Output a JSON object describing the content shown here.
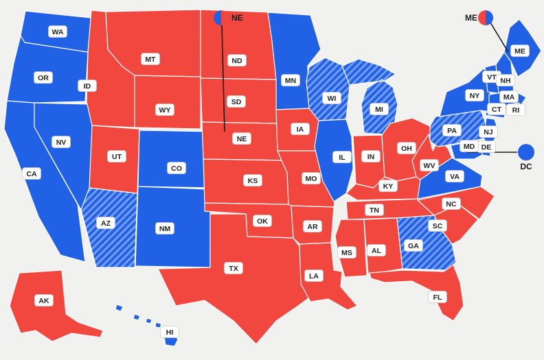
{
  "page": {
    "background": "#f1f1ef"
  },
  "colors": {
    "dem": "#2061e5",
    "rep": "#f2473f",
    "hatch_stripe": "rgba(255,255,255,0.38)",
    "state_border": "#ffffff",
    "label_bg": "#ffffff",
    "label_border": "#c9c9c9",
    "label_text": "#222222",
    "callout_line": "#1a1a1a",
    "callout_text": "#1a1a1a"
  },
  "states": [
    {
      "abbr": "WA",
      "party": "dem",
      "hatched": false
    },
    {
      "abbr": "OR",
      "party": "dem",
      "hatched": false
    },
    {
      "abbr": "CA",
      "party": "dem",
      "hatched": false
    },
    {
      "abbr": "NV",
      "party": "dem",
      "hatched": false
    },
    {
      "abbr": "ID",
      "party": "rep",
      "hatched": false
    },
    {
      "abbr": "MT",
      "party": "rep",
      "hatched": false
    },
    {
      "abbr": "WY",
      "party": "rep",
      "hatched": false
    },
    {
      "abbr": "UT",
      "party": "rep",
      "hatched": false
    },
    {
      "abbr": "CO",
      "party": "dem",
      "hatched": false
    },
    {
      "abbr": "AZ",
      "party": "dem",
      "hatched": true
    },
    {
      "abbr": "NM",
      "party": "dem",
      "hatched": false
    },
    {
      "abbr": "ND",
      "party": "rep",
      "hatched": false
    },
    {
      "abbr": "SD",
      "party": "rep",
      "hatched": false
    },
    {
      "abbr": "NE",
      "party": "rep",
      "hatched": false
    },
    {
      "abbr": "KS",
      "party": "rep",
      "hatched": false
    },
    {
      "abbr": "OK",
      "party": "rep",
      "hatched": false
    },
    {
      "abbr": "TX",
      "party": "rep",
      "hatched": false
    },
    {
      "abbr": "MN",
      "party": "dem",
      "hatched": false
    },
    {
      "abbr": "IA",
      "party": "rep",
      "hatched": false
    },
    {
      "abbr": "MO",
      "party": "rep",
      "hatched": false
    },
    {
      "abbr": "AR",
      "party": "rep",
      "hatched": false
    },
    {
      "abbr": "LA",
      "party": "rep",
      "hatched": false
    },
    {
      "abbr": "WI",
      "party": "dem",
      "hatched": true
    },
    {
      "abbr": "IL",
      "party": "dem",
      "hatched": false
    },
    {
      "abbr": "MI",
      "party": "dem",
      "hatched": true
    },
    {
      "abbr": "IN",
      "party": "rep",
      "hatched": false
    },
    {
      "abbr": "OH",
      "party": "rep",
      "hatched": false
    },
    {
      "abbr": "KY",
      "party": "rep",
      "hatched": false
    },
    {
      "abbr": "TN",
      "party": "rep",
      "hatched": false
    },
    {
      "abbr": "MS",
      "party": "rep",
      "hatched": false
    },
    {
      "abbr": "AL",
      "party": "rep",
      "hatched": false
    },
    {
      "abbr": "GA",
      "party": "dem",
      "hatched": true
    },
    {
      "abbr": "FL",
      "party": "rep",
      "hatched": false
    },
    {
      "abbr": "SC",
      "party": "rep",
      "hatched": false
    },
    {
      "abbr": "NC",
      "party": "rep",
      "hatched": false
    },
    {
      "abbr": "VA",
      "party": "dem",
      "hatched": false
    },
    {
      "abbr": "WV",
      "party": "rep",
      "hatched": false
    },
    {
      "abbr": "PA",
      "party": "dem",
      "hatched": true
    },
    {
      "abbr": "NY",
      "party": "dem",
      "hatched": false
    },
    {
      "abbr": "VT",
      "party": "dem",
      "hatched": false
    },
    {
      "abbr": "NH",
      "party": "dem",
      "hatched": false
    },
    {
      "abbr": "ME",
      "party": "dem",
      "hatched": false
    },
    {
      "abbr": "MA",
      "party": "dem",
      "hatched": false
    },
    {
      "abbr": "CT",
      "party": "dem",
      "hatched": false
    },
    {
      "abbr": "RI",
      "party": "dem",
      "hatched": false
    },
    {
      "abbr": "NJ",
      "party": "dem",
      "hatched": false
    },
    {
      "abbr": "DE",
      "party": "dem",
      "hatched": false
    },
    {
      "abbr": "MD",
      "party": "dem",
      "hatched": false
    },
    {
      "abbr": "AK",
      "party": "rep",
      "hatched": false
    },
    {
      "abbr": "HI",
      "party": "dem",
      "hatched": false
    }
  ],
  "callouts": [
    {
      "id": "NE",
      "label": "NE",
      "type": "pie",
      "left": "dem",
      "right": "rep"
    },
    {
      "id": "ME",
      "label": "ME",
      "type": "pie",
      "left": "rep",
      "right": "dem"
    },
    {
      "id": "DC",
      "label": "DC",
      "type": "dot",
      "party": "dem"
    }
  ]
}
